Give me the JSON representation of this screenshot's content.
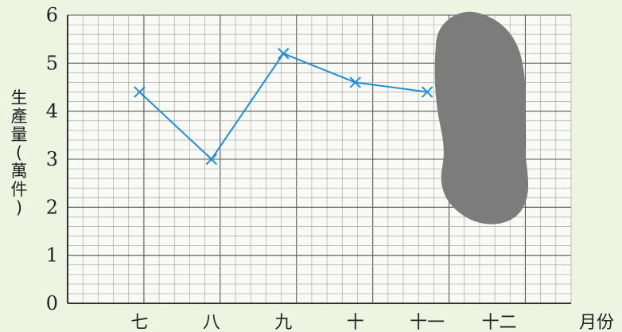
{
  "chart_data": {
    "type": "line",
    "title": "",
    "xlabel": "月份",
    "ylabel": "生產量(萬件)",
    "categories": [
      "七",
      "八",
      "九",
      "十",
      "十一",
      "十二"
    ],
    "series": [
      {
        "values": [
          4.4,
          3.0,
          5.2,
          4.6,
          4.4,
          null
        ]
      }
    ],
    "ylim": [
      0,
      6
    ],
    "yticks": [
      0,
      1,
      2,
      3,
      4,
      5,
      6
    ],
    "grid": true,
    "legend": "none",
    "colors": {
      "line": "#1f8fd6",
      "blot": "#7c7c7c",
      "background": "#eef4e2"
    }
  }
}
